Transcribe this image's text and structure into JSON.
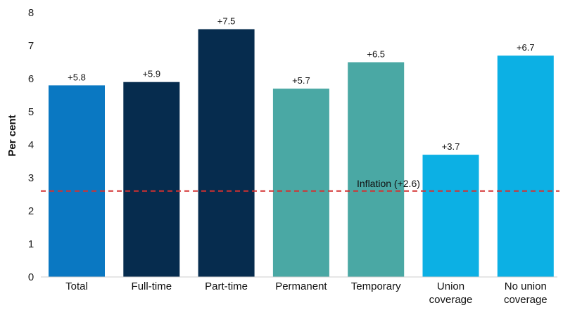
{
  "chart_data": {
    "type": "bar",
    "ylabel": "Per cent",
    "xlabel": "",
    "ylim": [
      0,
      8
    ],
    "yticks": [
      "0",
      "1",
      "2",
      "3",
      "4",
      "5",
      "6",
      "7",
      "8"
    ],
    "grid": false,
    "categories": [
      [
        "Total"
      ],
      [
        "Full-time"
      ],
      [
        "Part-time"
      ],
      [
        "Permanent"
      ],
      [
        "Temporary"
      ],
      [
        "Union",
        "coverage"
      ],
      [
        "No union",
        "coverage"
      ]
    ],
    "values": [
      5.8,
      5.9,
      7.5,
      5.7,
      6.5,
      3.7,
      6.7
    ],
    "data_labels": [
      "+5.8",
      "+5.9",
      "+7.5",
      "+5.7",
      "+6.5",
      "+3.7",
      "+6.7"
    ],
    "colors": [
      "#0a78c2",
      "#062c4e",
      "#062c4e",
      "#4aa8a4",
      "#4aa8a4",
      "#0cb0e4",
      "#0cb0e4"
    ],
    "reference_line": {
      "value": 2.6,
      "label": "Inflation (+2.6)",
      "color": "#d43030",
      "style": "dashed"
    }
  }
}
